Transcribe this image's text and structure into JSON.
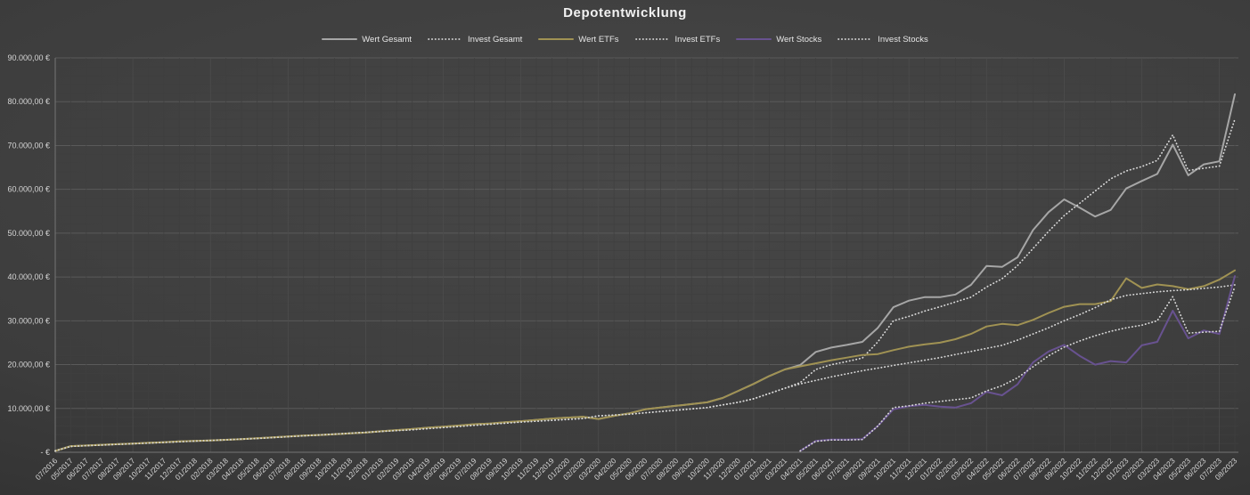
{
  "chart_data": {
    "type": "line",
    "title": "Depotentwicklung",
    "legend_position": "top",
    "grid": {
      "horizontal_major_step": 10000,
      "horizontal_minor_step": 2000,
      "vertical_per_category": true
    },
    "y_axis": {
      "min": 0,
      "max": 90000,
      "step": 10000,
      "tick_labels": [
        "- €",
        "10.000,00 €",
        "20.000,00 €",
        "30.000,00 €",
        "40.000,00 €",
        "50.000,00 €",
        "60.000,00 €",
        "70.000,00 €",
        "80.000,00 €",
        "90.000,00 €"
      ]
    },
    "x_labels": [
      "07/2016",
      "05/2017",
      "06/2017",
      "07/2017",
      "08/2017",
      "09/2017",
      "10/2017",
      "11/2017",
      "12/2017",
      "01/2018",
      "02/2018",
      "03/2018",
      "04/2018",
      "05/2018",
      "06/2018",
      "07/2018",
      "08/2018",
      "09/2018",
      "10/2018",
      "11/2018",
      "12/2018",
      "01/2019",
      "02/2019",
      "03/2019",
      "04/2019",
      "05/2019",
      "06/2019",
      "07/2019",
      "08/2019",
      "09/2019",
      "10/2019",
      "11/2019",
      "12/2019",
      "01/2020",
      "02/2020",
      "03/2020",
      "04/2020",
      "05/2020",
      "06/2020",
      "07/2020",
      "08/2020",
      "09/2020",
      "10/2020",
      "11/2020",
      "12/2020",
      "01/2021",
      "02/2021",
      "03/2021",
      "04/2021",
      "05/2021",
      "06/2021",
      "07/2021",
      "08/2021",
      "09/2021",
      "10/2021",
      "11/2021",
      "12/2021",
      "01/2022",
      "02/2022",
      "03/2022",
      "04/2022",
      "05/2022",
      "06/2022",
      "07/2022",
      "08/2022",
      "09/2022",
      "10/2022",
      "11/2022",
      "12/2022",
      "01/2023",
      "02/2023",
      "03/2023",
      "04/2023",
      "05/2023",
      "06/2023",
      "07/2023",
      "08/2023"
    ],
    "series": [
      {
        "name": "Wert Gesamt",
        "style": "solid",
        "color": "#a6a6a6",
        "width": 2,
        "values": [
          300,
          1400,
          1550,
          1700,
          1850,
          2000,
          2150,
          2300,
          2500,
          2600,
          2700,
          2850,
          3000,
          3200,
          3400,
          3600,
          3800,
          3950,
          4100,
          4300,
          4500,
          4800,
          5050,
          5300,
          5600,
          5850,
          6100,
          6400,
          6550,
          6850,
          7100,
          7400,
          7700,
          7900,
          8100,
          7600,
          8300,
          8900,
          9800,
          10200,
          10600,
          11000,
          11400,
          12400,
          14000,
          15600,
          17400,
          18900,
          19900,
          22900,
          23900,
          24500,
          25200,
          28400,
          33100,
          34600,
          35400,
          35400,
          36000,
          38200,
          42500,
          42300,
          44500,
          50700,
          54800,
          57700,
          55800,
          53800,
          55300,
          60200,
          61900,
          63500,
          70200,
          63200,
          65700,
          66400,
          81700
        ]
      },
      {
        "name": "Invest Gesamt",
        "style": "dotted",
        "color": "#d9d9d9",
        "width": 1.7,
        "values": [
          300,
          1350,
          1500,
          1650,
          1800,
          1950,
          2100,
          2250,
          2400,
          2550,
          2700,
          2850,
          3000,
          3150,
          3350,
          3550,
          3750,
          3950,
          4150,
          4350,
          4550,
          4750,
          4950,
          5150,
          5400,
          5650,
          5900,
          6150,
          6400,
          6650,
          6900,
          7100,
          7300,
          7500,
          7700,
          8300,
          8500,
          8700,
          9000,
          9300,
          9600,
          9900,
          10200,
          10800,
          11400,
          12200,
          13400,
          14600,
          15900,
          18900,
          20000,
          20700,
          21500,
          25200,
          30000,
          31000,
          32200,
          33200,
          34300,
          35400,
          37700,
          39600,
          42600,
          46500,
          50400,
          54000,
          56800,
          59600,
          62400,
          64200,
          65200,
          66600,
          72400,
          64300,
          64800,
          65300,
          76000
        ]
      },
      {
        "name": "Wert ETFs",
        "style": "solid",
        "color": "#a09253",
        "width": 2,
        "values": [
          300,
          1400,
          1550,
          1700,
          1850,
          2000,
          2150,
          2300,
          2500,
          2600,
          2700,
          2850,
          3000,
          3200,
          3400,
          3600,
          3800,
          3950,
          4100,
          4300,
          4500,
          4800,
          5050,
          5300,
          5600,
          5850,
          6100,
          6400,
          6550,
          6850,
          7100,
          7400,
          7700,
          7900,
          8100,
          7600,
          8300,
          8900,
          9800,
          10200,
          10600,
          11000,
          11400,
          12400,
          14000,
          15600,
          17400,
          18900,
          19600,
          20300,
          21000,
          21600,
          22200,
          22400,
          23300,
          24100,
          24600,
          25000,
          25800,
          27000,
          28700,
          29300,
          29000,
          30200,
          31800,
          33200,
          33800,
          33800,
          34500,
          39700,
          37500,
          38300,
          37900,
          37200,
          37900,
          39400,
          41500
        ]
      },
      {
        "name": "Invest ETFs",
        "style": "dotted",
        "color": "#d9d9d9",
        "width": 1.7,
        "values": [
          300,
          1350,
          1500,
          1650,
          1800,
          1950,
          2100,
          2250,
          2400,
          2550,
          2700,
          2850,
          3000,
          3150,
          3350,
          3550,
          3750,
          3950,
          4150,
          4350,
          4550,
          4750,
          4950,
          5150,
          5400,
          5650,
          5900,
          6150,
          6400,
          6650,
          6900,
          7100,
          7300,
          7500,
          7700,
          8300,
          8500,
          8700,
          9000,
          9300,
          9600,
          9900,
          10200,
          10800,
          11400,
          12200,
          13400,
          14600,
          15600,
          16400,
          17200,
          17900,
          18600,
          19200,
          19800,
          20400,
          21000,
          21600,
          22300,
          23000,
          23700,
          24400,
          25600,
          27000,
          28400,
          30000,
          31400,
          33000,
          34800,
          35800,
          36200,
          36600,
          36900,
          37100,
          37400,
          37700,
          38200
        ]
      },
      {
        "name": "Wert Stocks",
        "style": "solid",
        "color": "#685290",
        "width": 2,
        "values": [
          null,
          null,
          null,
          null,
          null,
          null,
          null,
          null,
          null,
          null,
          null,
          null,
          null,
          null,
          null,
          null,
          null,
          null,
          null,
          null,
          null,
          null,
          null,
          null,
          null,
          null,
          null,
          null,
          null,
          null,
          null,
          null,
          null,
          null,
          null,
          null,
          null,
          null,
          null,
          null,
          null,
          null,
          null,
          null,
          null,
          null,
          null,
          null,
          300,
          2600,
          2900,
          2900,
          3000,
          6000,
          9800,
          10500,
          10800,
          10400,
          10200,
          11200,
          13800,
          13000,
          15500,
          20500,
          23000,
          24500,
          22000,
          20000,
          20800,
          20500,
          24400,
          25200,
          32300,
          26000,
          27800,
          27000,
          40200
        ]
      },
      {
        "name": "Invest Stocks",
        "style": "dotted",
        "color": "#d9d9d9",
        "width": 1.7,
        "values": [
          null,
          null,
          null,
          null,
          null,
          null,
          null,
          null,
          null,
          null,
          null,
          null,
          null,
          null,
          null,
          null,
          null,
          null,
          null,
          null,
          null,
          null,
          null,
          null,
          null,
          null,
          null,
          null,
          null,
          null,
          null,
          null,
          null,
          null,
          null,
          null,
          null,
          null,
          null,
          null,
          null,
          null,
          null,
          null,
          null,
          null,
          null,
          null,
          300,
          2500,
          2800,
          2800,
          2900,
          6000,
          10200,
          10600,
          11200,
          11600,
          12000,
          12400,
          14000,
          15200,
          17000,
          19500,
          22000,
          24000,
          25400,
          26600,
          27600,
          28400,
          29000,
          30000,
          35500,
          27200,
          27400,
          27600,
          37800
        ]
      }
    ],
    "colors": {
      "background_center": "#484848",
      "background_outer": "#272727",
      "grid_major": "#5a5a5a",
      "grid_minor": "#3f3f3f",
      "grid_vertical": "#3f3f3f",
      "grid_vertical_emph": "#4d4d4d",
      "axis_line": "#757575",
      "axis_text": "#d6d6d6",
      "title_text": "#f2f2f2"
    }
  }
}
